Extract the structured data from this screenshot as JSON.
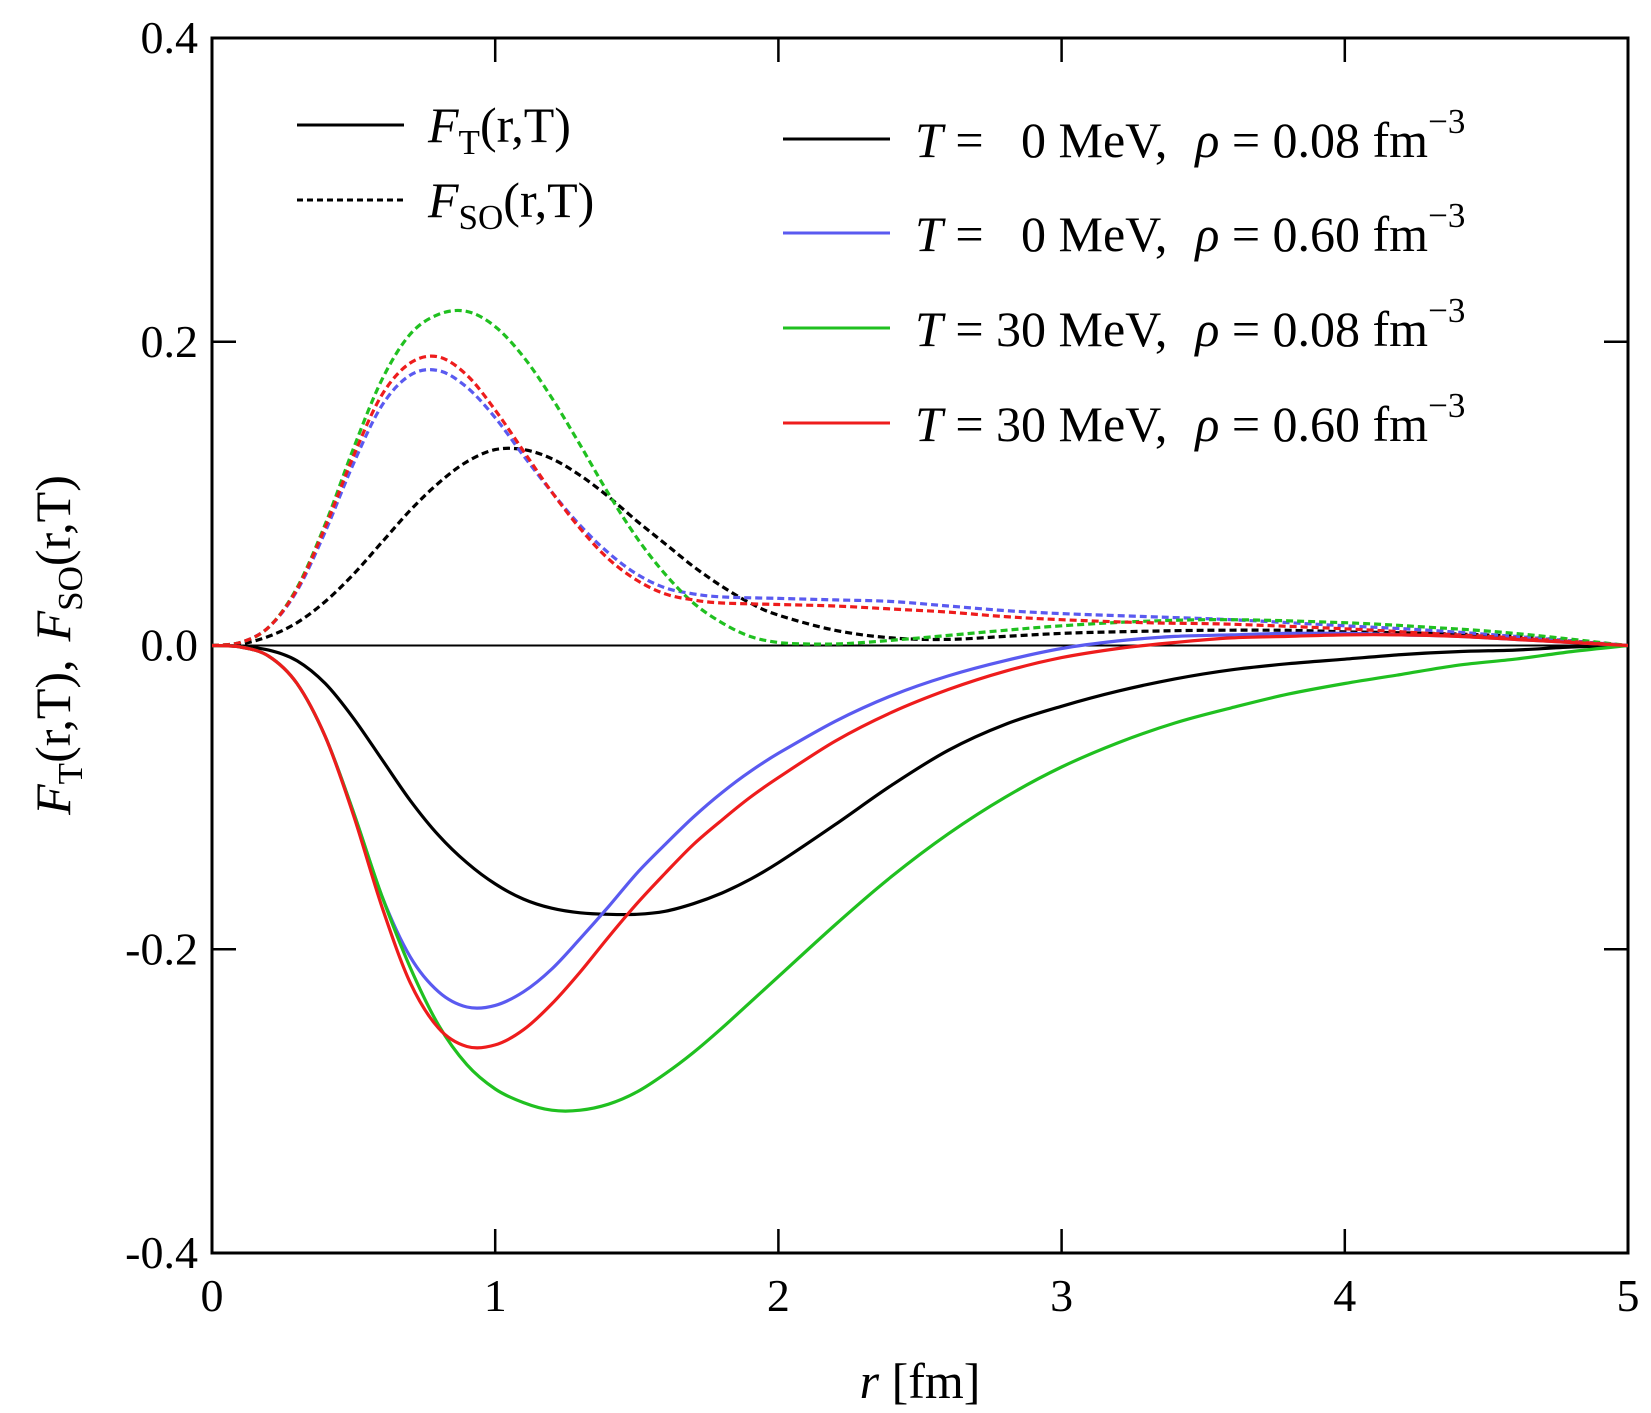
{
  "chart_data": {
    "type": "line",
    "title": "",
    "xlabel": {
      "var": "r",
      "unit": "[fm]"
    },
    "ylabel": {
      "f1": "F",
      "s1": "T",
      "a1": "(r,T),",
      "f2": "F",
      "s2": "SO",
      "a2": "(r,T)"
    },
    "xlim": [
      0,
      5
    ],
    "ylim": [
      -0.4,
      0.4
    ],
    "x_ticks": [
      0,
      1,
      2,
      3,
      4,
      5
    ],
    "x_tick_labels": [
      "0",
      "1",
      "2",
      "3",
      "4",
      "5"
    ],
    "y_ticks": [
      -0.4,
      -0.2,
      0.0,
      0.2,
      0.4
    ],
    "y_tick_labels": [
      "-0.4",
      "-0.2",
      "0.0",
      "0.2",
      "0.4"
    ],
    "zero_line": true,
    "grid": false,
    "style_legend": [
      {
        "name": "F_T(r,T)",
        "f": "F",
        "sub": "T",
        "args": "(r,T)",
        "dash": "solid"
      },
      {
        "name": "F_SO(r,T)",
        "f": "F",
        "sub": "SO",
        "args": "(r,T)",
        "dash": "dotted"
      }
    ],
    "series": [
      {
        "name": "T = 0 MeV, ρ = 0.08 fm^-3",
        "label": {
          "T": "T",
          "teq": " =   0 MeV,",
          "rho": "ρ",
          "req": " = 0.08 fm",
          "exp": "−3"
        },
        "color": "#000000",
        "F_T": {
          "x": [
            0,
            0.1,
            0.2,
            0.3,
            0.4,
            0.5,
            0.6,
            0.7,
            0.8,
            0.9,
            1.0,
            1.1,
            1.2,
            1.3,
            1.4,
            1.5,
            1.6,
            1.7,
            1.8,
            1.9,
            2.0,
            2.2,
            2.4,
            2.6,
            2.8,
            3.0,
            3.2,
            3.4,
            3.6,
            3.8,
            4.0,
            4.2,
            4.4,
            4.6,
            4.8,
            5.0
          ],
          "y": [
            0,
            -0.0005,
            -0.003,
            -0.01,
            -0.025,
            -0.048,
            -0.075,
            -0.102,
            -0.125,
            -0.143,
            -0.157,
            -0.167,
            -0.173,
            -0.176,
            -0.177,
            -0.177,
            -0.175,
            -0.17,
            -0.163,
            -0.154,
            -0.143,
            -0.118,
            -0.092,
            -0.069,
            -0.052,
            -0.04,
            -0.03,
            -0.022,
            -0.016,
            -0.012,
            -0.009,
            -0.006,
            -0.004,
            -0.003,
            -0.001,
            0
          ]
        },
        "F_SO": {
          "x": [
            0,
            0.1,
            0.2,
            0.3,
            0.4,
            0.5,
            0.6,
            0.7,
            0.8,
            0.9,
            1.0,
            1.1,
            1.2,
            1.3,
            1.4,
            1.5,
            1.6,
            1.7,
            1.8,
            1.9,
            2.0,
            2.2,
            2.4,
            2.6,
            2.8,
            3.0,
            3.2,
            3.5,
            3.8,
            4.0,
            4.3,
            4.6,
            5.0
          ],
          "y": [
            0,
            0.001,
            0.006,
            0.015,
            0.029,
            0.047,
            0.068,
            0.089,
            0.107,
            0.121,
            0.129,
            0.129,
            0.123,
            0.112,
            0.098,
            0.082,
            0.067,
            0.052,
            0.039,
            0.028,
            0.02,
            0.01,
            0.005,
            0.004,
            0.006,
            0.008,
            0.009,
            0.01,
            0.01,
            0.009,
            0.008,
            0.006,
            0
          ]
        }
      },
      {
        "name": "T = 0 MeV, ρ = 0.60 fm^-3",
        "label": {
          "T": "T",
          "teq": " =   0 MeV,",
          "rho": "ρ",
          "req": " = 0.60 fm",
          "exp": "−3"
        },
        "color": "#5a5af0",
        "F_T": {
          "x": [
            0,
            0.1,
            0.2,
            0.3,
            0.4,
            0.5,
            0.6,
            0.7,
            0.8,
            0.9,
            1.0,
            1.1,
            1.2,
            1.3,
            1.4,
            1.5,
            1.6,
            1.7,
            1.8,
            1.9,
            2.0,
            2.2,
            2.4,
            2.6,
            2.8,
            3.0,
            3.2,
            3.4,
            3.6,
            3.8,
            4.0,
            4.2,
            4.4,
            4.6,
            4.8,
            5.0
          ],
          "y": [
            0,
            -0.001,
            -0.007,
            -0.025,
            -0.06,
            -0.11,
            -0.165,
            -0.205,
            -0.228,
            -0.238,
            -0.237,
            -0.228,
            -0.213,
            -0.193,
            -0.172,
            -0.15,
            -0.131,
            -0.113,
            -0.097,
            -0.083,
            -0.071,
            -0.05,
            -0.033,
            -0.02,
            -0.01,
            -0.002,
            0.003,
            0.006,
            0.007,
            0.008,
            0.008,
            0.007,
            0.006,
            0.004,
            0.002,
            0
          ]
        },
        "F_SO": {
          "x": [
            0,
            0.1,
            0.2,
            0.3,
            0.4,
            0.5,
            0.6,
            0.7,
            0.8,
            0.9,
            1.0,
            1.1,
            1.2,
            1.3,
            1.4,
            1.5,
            1.6,
            1.7,
            1.8,
            2.0,
            2.2,
            2.4,
            2.6,
            2.8,
            3.0,
            3.3,
            3.6,
            4.0,
            4.3,
            4.6,
            5.0
          ],
          "y": [
            0,
            0.002,
            0.012,
            0.036,
            0.075,
            0.12,
            0.158,
            0.178,
            0.181,
            0.17,
            0.15,
            0.125,
            0.101,
            0.079,
            0.061,
            0.047,
            0.038,
            0.034,
            0.032,
            0.031,
            0.03,
            0.029,
            0.026,
            0.023,
            0.021,
            0.019,
            0.017,
            0.013,
            0.01,
            0.006,
            0
          ]
        }
      },
      {
        "name": "T = 30 MeV, ρ = 0.08 fm^-3",
        "label": {
          "T": "T",
          "teq": " = 30 MeV,",
          "rho": "ρ",
          "req": " = 0.08 fm",
          "exp": "−3"
        },
        "color": "#20c020",
        "F_T": {
          "x": [
            0,
            0.1,
            0.2,
            0.3,
            0.4,
            0.5,
            0.6,
            0.7,
            0.8,
            0.9,
            1.0,
            1.1,
            1.2,
            1.3,
            1.4,
            1.5,
            1.6,
            1.7,
            1.8,
            1.9,
            2.0,
            2.2,
            2.4,
            2.6,
            2.8,
            3.0,
            3.2,
            3.4,
            3.6,
            3.8,
            4.0,
            4.2,
            4.4,
            4.6,
            4.8,
            5.0
          ],
          "y": [
            0,
            -0.001,
            -0.007,
            -0.025,
            -0.06,
            -0.11,
            -0.165,
            -0.212,
            -0.25,
            -0.276,
            -0.292,
            -0.301,
            -0.306,
            -0.306,
            -0.302,
            -0.294,
            -0.282,
            -0.268,
            -0.252,
            -0.235,
            -0.218,
            -0.184,
            -0.152,
            -0.124,
            -0.1,
            -0.08,
            -0.064,
            -0.051,
            -0.041,
            -0.032,
            -0.025,
            -0.019,
            -0.013,
            -0.009,
            -0.004,
            0
          ]
        },
        "F_SO": {
          "x": [
            0,
            0.1,
            0.2,
            0.3,
            0.4,
            0.5,
            0.6,
            0.7,
            0.8,
            0.9,
            1.0,
            1.1,
            1.2,
            1.3,
            1.4,
            1.5,
            1.6,
            1.7,
            1.8,
            1.9,
            2.0,
            2.1,
            2.2,
            2.3,
            2.5,
            2.8,
            3.0,
            3.3,
            3.6,
            4.0,
            4.3,
            4.6,
            5.0
          ],
          "y": [
            0,
            0.002,
            0.012,
            0.038,
            0.08,
            0.13,
            0.175,
            0.205,
            0.218,
            0.22,
            0.21,
            0.19,
            0.163,
            0.132,
            0.1,
            0.071,
            0.047,
            0.028,
            0.015,
            0.006,
            0.002,
            0.001,
            0.001,
            0.002,
            0.005,
            0.01,
            0.013,
            0.016,
            0.017,
            0.015,
            0.012,
            0.008,
            0
          ]
        }
      },
      {
        "name": "T = 30 MeV, ρ = 0.60 fm^-3",
        "label": {
          "T": "T",
          "teq": " = 30 MeV,",
          "rho": "ρ",
          "req": " = 0.60 fm",
          "exp": "−3"
        },
        "color": "#ee1c1c",
        "F_T": {
          "x": [
            0,
            0.1,
            0.2,
            0.3,
            0.4,
            0.5,
            0.6,
            0.7,
            0.8,
            0.9,
            1.0,
            1.1,
            1.2,
            1.3,
            1.4,
            1.5,
            1.6,
            1.7,
            1.8,
            1.9,
            2.0,
            2.2,
            2.4,
            2.6,
            2.8,
            3.0,
            3.2,
            3.4,
            3.6,
            3.8,
            4.0,
            4.2,
            4.4,
            4.6,
            4.8,
            5.0
          ],
          "y": [
            0,
            -0.001,
            -0.007,
            -0.025,
            -0.06,
            -0.112,
            -0.172,
            -0.222,
            -0.252,
            -0.264,
            -0.263,
            -0.253,
            -0.236,
            -0.215,
            -0.192,
            -0.17,
            -0.15,
            -0.131,
            -0.115,
            -0.1,
            -0.087,
            -0.063,
            -0.044,
            -0.029,
            -0.017,
            -0.008,
            -0.002,
            0.002,
            0.005,
            0.006,
            0.007,
            0.007,
            0.006,
            0.004,
            0.002,
            0
          ]
        },
        "F_SO": {
          "x": [
            0,
            0.1,
            0.2,
            0.3,
            0.4,
            0.5,
            0.6,
            0.7,
            0.8,
            0.9,
            1.0,
            1.1,
            1.2,
            1.3,
            1.4,
            1.5,
            1.6,
            1.7,
            1.8,
            2.0,
            2.2,
            2.4,
            2.6,
            2.8,
            3.0,
            3.3,
            3.6,
            4.0,
            4.3,
            4.6,
            5.0
          ],
          "y": [
            0,
            0.002,
            0.012,
            0.037,
            0.078,
            0.125,
            0.165,
            0.186,
            0.19,
            0.178,
            0.155,
            0.128,
            0.101,
            0.077,
            0.057,
            0.043,
            0.034,
            0.03,
            0.028,
            0.027,
            0.026,
            0.024,
            0.022,
            0.019,
            0.017,
            0.015,
            0.014,
            0.011,
            0.008,
            0.005,
            0
          ]
        }
      }
    ]
  }
}
